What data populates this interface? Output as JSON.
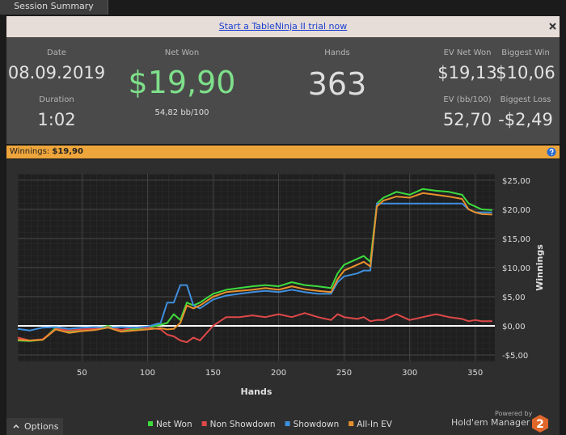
{
  "tab": {
    "label": "Session Summary"
  },
  "banner": {
    "link": "Start a TableNinja II trial now"
  },
  "stats": {
    "date": {
      "label": "Date",
      "value": "08.09.2019"
    },
    "duration": {
      "label": "Duration",
      "value": "1:02"
    },
    "net_won": {
      "label": "Net Won",
      "value": "$19,90",
      "sub": "54,82 bb/100"
    },
    "hands": {
      "label": "Hands",
      "value": "363"
    },
    "ev_net_won": {
      "label": "EV Net Won",
      "value": "$19,13"
    },
    "biggest_win": {
      "label": "Biggest Win",
      "value": "$10,06"
    },
    "ev_bb": {
      "label": "EV (bb/100)",
      "value": "52,70"
    },
    "biggest_loss": {
      "label": "Biggest Loss",
      "value": "-$2,49"
    }
  },
  "winnings_bar": {
    "label": "Winnings:",
    "value": "$19,90"
  },
  "chart_data": {
    "type": "line",
    "x_label": "Hands",
    "y_label": "Winnings",
    "x": [
      1,
      10,
      20,
      30,
      40,
      50,
      60,
      70,
      80,
      90,
      100,
      110,
      115,
      120,
      125,
      130,
      135,
      140,
      150,
      160,
      170,
      180,
      190,
      200,
      210,
      220,
      230,
      240,
      245,
      250,
      260,
      265,
      270,
      275,
      280,
      290,
      300,
      310,
      320,
      330,
      340,
      345,
      350,
      355,
      363
    ],
    "series": [
      {
        "name": "Net Won",
        "color": "#3ddc3d",
        "values": [
          -2.5,
          -2.6,
          -2.4,
          -0.3,
          -1,
          -0.8,
          -0.5,
          0,
          -0.8,
          -0.5,
          -0.3,
          0.2,
          0.5,
          2,
          1,
          4,
          3.5,
          4,
          5.5,
          6.2,
          6.5,
          6.8,
          7,
          6.8,
          7.5,
          7,
          6.8,
          6.5,
          9,
          10.5,
          11.5,
          12,
          11,
          21,
          22,
          23,
          22.5,
          23.5,
          23.2,
          23,
          22.5,
          21,
          20.5,
          20,
          19.9
        ]
      },
      {
        "name": "Non Showdown",
        "color": "#e04848",
        "values": [
          -2,
          -2.5,
          -2.3,
          -0.5,
          -0.8,
          -0.6,
          -0.5,
          -0.2,
          -0.7,
          -0.3,
          -0.3,
          -0.6,
          -1.5,
          -1.8,
          -2.5,
          -2.8,
          -2,
          -2.5,
          0,
          1.5,
          1.5,
          1.8,
          1.5,
          2,
          1.5,
          2.2,
          1.5,
          1,
          2,
          1.5,
          1.2,
          1.5,
          0.8,
          1,
          1,
          2,
          1,
          1.5,
          2,
          1.5,
          1.2,
          0.8,
          1,
          0.8,
          0.8
        ]
      },
      {
        "name": "Showdown",
        "color": "#3f8fde",
        "values": [
          -0.5,
          -0.8,
          -0.3,
          -0.2,
          -0.5,
          -0.3,
          -0.2,
          -0.3,
          -0.2,
          -0.3,
          -0.1,
          0.5,
          4,
          4,
          7,
          7,
          3.5,
          3,
          4.5,
          5.2,
          5.5,
          5.8,
          6,
          5.8,
          6.2,
          5.8,
          5.5,
          5.5,
          7.5,
          8.5,
          9,
          9.5,
          9.5,
          21,
          21,
          21,
          21,
          21,
          21,
          21,
          21,
          20,
          19.5,
          19.5,
          19.5
        ]
      },
      {
        "name": "All-In EV",
        "color": "#e8912c",
        "values": [
          -2.4,
          -2.5,
          -2.4,
          -0.6,
          -1.2,
          -0.9,
          -0.7,
          -0.3,
          -1,
          -0.8,
          -0.6,
          -0.4,
          -0.6,
          -0.5,
          0.5,
          3.5,
          3,
          3.5,
          5,
          5.8,
          6,
          6.2,
          6.5,
          6.2,
          6.8,
          6.3,
          6,
          5.8,
          8,
          9.5,
          10.5,
          11,
          10.2,
          20.5,
          21.5,
          22.2,
          22,
          22.8,
          22.5,
          22.2,
          21.8,
          20,
          19.5,
          19.2,
          19.1
        ]
      }
    ],
    "xlim": [
      1,
      365
    ],
    "ylim": [
      -6.1,
      26.1
    ],
    "xticks": [
      50,
      100,
      150,
      200,
      250,
      300,
      350
    ],
    "yticks": [
      {
        "value": -5,
        "label": "-$5,00"
      },
      {
        "value": 0,
        "label": "$0,00"
      },
      {
        "value": 5,
        "label": "$5,00"
      },
      {
        "value": 10,
        "label": "$10,00"
      },
      {
        "value": 15,
        "label": "$15,00"
      },
      {
        "value": 20,
        "label": "$20,00"
      },
      {
        "value": 25,
        "label": "$25,00"
      }
    ],
    "grid": true,
    "zero_line": true,
    "y_axis_side": "right",
    "legend": "bottom"
  },
  "footer": {
    "options": "Options",
    "powered_by": "Powered by",
    "brand": "Hold'em Manager",
    "brand_badge": "2"
  }
}
